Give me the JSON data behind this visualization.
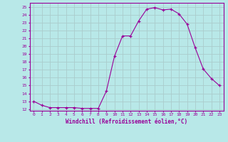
{
  "x": [
    0,
    1,
    2,
    3,
    4,
    5,
    6,
    7,
    8,
    9,
    10,
    11,
    12,
    13,
    14,
    15,
    16,
    17,
    18,
    19,
    20,
    21,
    22,
    23
  ],
  "y": [
    13.0,
    12.5,
    12.2,
    12.2,
    12.2,
    12.2,
    12.1,
    12.1,
    12.1,
    14.3,
    18.7,
    21.3,
    21.3,
    23.2,
    24.7,
    24.9,
    24.6,
    24.7,
    24.1,
    22.8,
    19.8,
    17.1,
    15.9,
    15.0
  ],
  "line_color": "#990099",
  "marker": "+",
  "bg_color": "#b8e8e8",
  "grid_color": "#aacccc",
  "xlabel": "Windchill (Refroidissement éolien,°C)",
  "xlabel_color": "#990099",
  "tick_color": "#990099",
  "ylim": [
    11.8,
    25.5
  ],
  "xlim": [
    -0.5,
    23.5
  ],
  "yticks": [
    12,
    13,
    14,
    15,
    16,
    17,
    18,
    19,
    20,
    21,
    22,
    23,
    24,
    25
  ],
  "xticks": [
    0,
    1,
    2,
    3,
    4,
    5,
    6,
    7,
    8,
    9,
    10,
    11,
    12,
    13,
    14,
    15,
    16,
    17,
    18,
    19,
    20,
    21,
    22,
    23
  ]
}
